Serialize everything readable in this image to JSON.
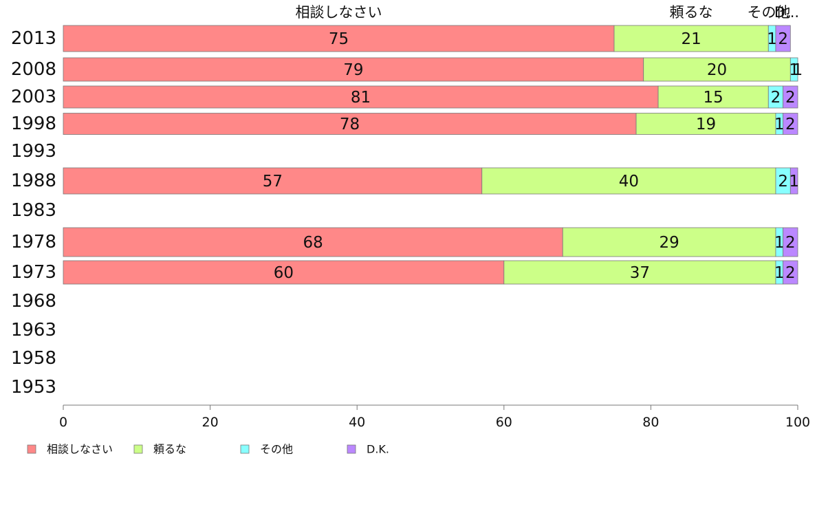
{
  "chart_data": {
    "type": "bar",
    "orientation": "horizontal",
    "stacked": true,
    "categories": [
      "2013",
      "2008",
      "2003",
      "1998",
      "1993",
      "1988",
      "1983",
      "1978",
      "1973",
      "1968",
      "1963",
      "1958",
      "1953"
    ],
    "series": [
      {
        "name": "相談しなさい",
        "color": "#ff8888",
        "values": [
          75,
          79,
          81,
          78,
          null,
          57,
          null,
          68,
          60,
          null,
          null,
          null,
          null
        ]
      },
      {
        "name": "頼るな",
        "color": "#ccff88",
        "values": [
          21,
          20,
          15,
          19,
          null,
          40,
          null,
          29,
          37,
          null,
          null,
          null,
          null
        ]
      },
      {
        "name": "その他",
        "color": "#88ffff",
        "values": [
          1,
          1,
          2,
          1,
          null,
          2,
          null,
          1,
          1,
          null,
          null,
          null,
          null
        ]
      },
      {
        "name": "D.K.",
        "color": "#bb88ff",
        "values": [
          2,
          1,
          2,
          2,
          null,
          1,
          null,
          2,
          2,
          null,
          null,
          null,
          null
        ]
      }
    ],
    "header_labels": [
      "相談しなさい",
      "頼るな",
      "その他",
      "D..."
    ],
    "xlim": [
      0,
      100
    ],
    "xticks": [
      0,
      20,
      40,
      60,
      80,
      100
    ],
    "grid": false,
    "legend_position": "bottom-left",
    "segment_labels": true
  }
}
